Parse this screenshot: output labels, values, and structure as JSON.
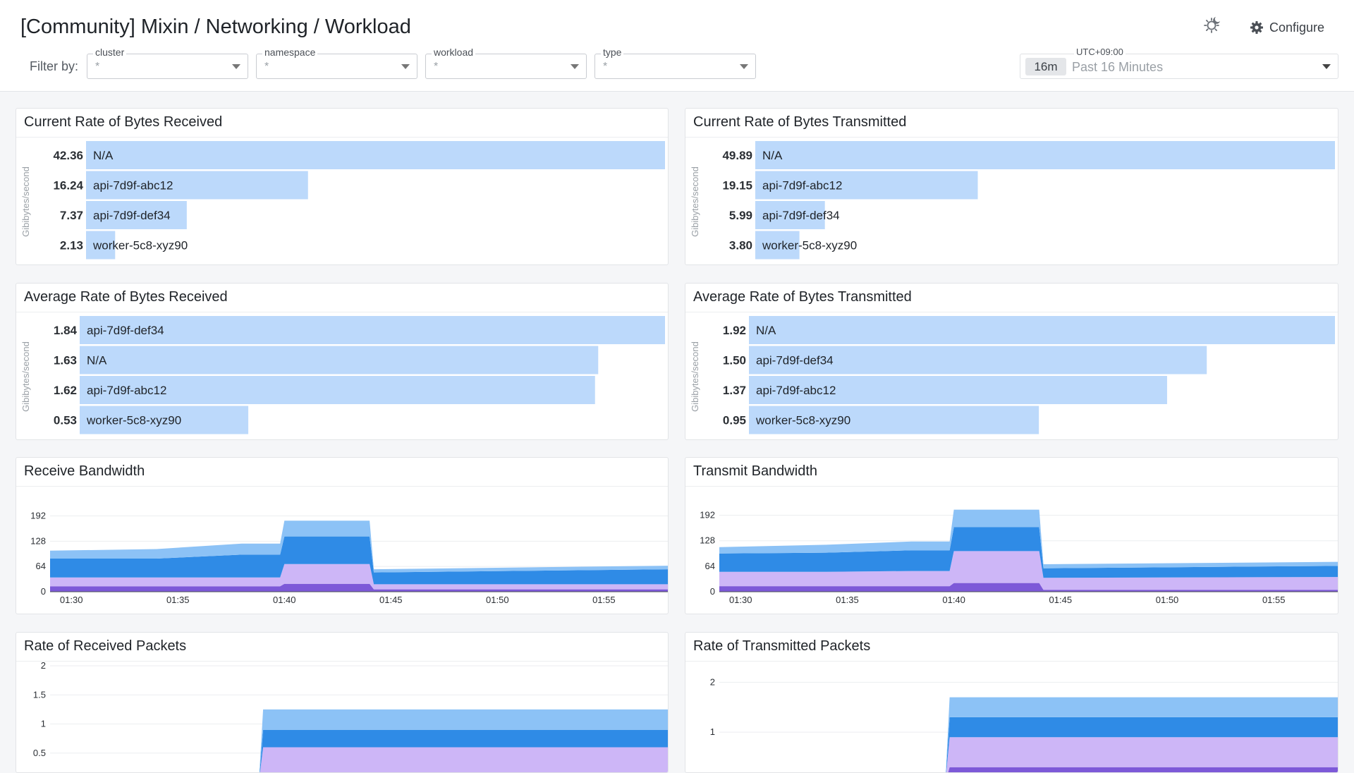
{
  "header": {
    "title": "[Community] Mixin / Networking / Workload",
    "theme_icon": "sun-moon-icon",
    "configure_icon": "gear-icon",
    "configure_label": "Configure"
  },
  "filters": {
    "label": "Filter by:",
    "items": [
      {
        "name": "cluster",
        "value": "*"
      },
      {
        "name": "namespace",
        "value": "*"
      },
      {
        "name": "workload",
        "value": "*"
      },
      {
        "name": "type",
        "value": "*"
      }
    ]
  },
  "time_picker": {
    "timezone": "UTC+09:00",
    "duration": "16m",
    "range": "Past 16 Minutes"
  },
  "colors": {
    "bar": "#bcd9fb",
    "light_blue": "#8cc2f6",
    "mid_blue": "#2f8be6",
    "lavender": "#cdb6f7",
    "purple": "#7d59d8"
  },
  "panels": {
    "current_rx": {
      "title": "Current Rate of Bytes Received"
    },
    "current_tx": {
      "title": "Current Rate of Bytes Transmitted"
    },
    "avg_rx": {
      "title": "Average Rate of Bytes Received"
    },
    "avg_tx": {
      "title": "Average Rate of Bytes Transmitted"
    },
    "rx_bw": {
      "title": "Receive Bandwidth"
    },
    "tx_bw": {
      "title": "Transmit Bandwidth"
    },
    "rx_pkts": {
      "title": "Rate of Received Packets"
    },
    "tx_pkts": {
      "title": "Rate of Transmitted Packets"
    }
  },
  "chart_data": [
    {
      "id": "current_rx",
      "type": "bar",
      "orientation": "horizontal",
      "title": "Current Rate of Bytes Received",
      "ylabel": "Gibibytes/second",
      "categories": [
        "N/A",
        "api-7d9f-abc12",
        "api-7d9f-def34",
        "worker-5c8-xyz90"
      ],
      "values": [
        42.36,
        16.24,
        7.37,
        2.13
      ],
      "value_labels": [
        "42.36",
        "16.24",
        "7.37",
        "2.13"
      ]
    },
    {
      "id": "current_tx",
      "type": "bar",
      "orientation": "horizontal",
      "title": "Current Rate of Bytes Transmitted",
      "ylabel": "Gibibytes/second",
      "categories": [
        "N/A",
        "api-7d9f-abc12",
        "api-7d9f-def34",
        "worker-5c8-xyz90"
      ],
      "values": [
        49.89,
        19.15,
        5.99,
        3.8
      ],
      "value_labels": [
        "49.89",
        "19.15",
        "5.99",
        "3.80"
      ]
    },
    {
      "id": "avg_rx",
      "type": "bar",
      "orientation": "horizontal",
      "title": "Average Rate of Bytes Received",
      "ylabel": "Gibibytes/second",
      "categories": [
        "api-7d9f-def34",
        "N/A",
        "api-7d9f-abc12",
        "worker-5c8-xyz90"
      ],
      "values": [
        1.84,
        1.63,
        1.62,
        0.53
      ],
      "value_labels": [
        "1.84",
        "1.63",
        "1.62",
        "0.53"
      ]
    },
    {
      "id": "avg_tx",
      "type": "bar",
      "orientation": "horizontal",
      "title": "Average Rate of Bytes Transmitted",
      "ylabel": "Gibibytes/second",
      "categories": [
        "N/A",
        "api-7d9f-def34",
        "api-7d9f-abc12",
        "worker-5c8-xyz90"
      ],
      "values": [
        1.92,
        1.5,
        1.37,
        0.95
      ],
      "value_labels": [
        "1.92",
        "1.50",
        "1.37",
        "0.95"
      ]
    },
    {
      "id": "rx_bw",
      "type": "area",
      "stacked": true,
      "title": "Receive Bandwidth",
      "x_tick_labels": [
        "01:30",
        "01:35",
        "01:40",
        "01:45",
        "01:50",
        "01:55"
      ],
      "x_tick_minutes": [
        0,
        5,
        10,
        15,
        20,
        25
      ],
      "x_range_minutes": [
        -1,
        28.2
      ],
      "y_ticks": [
        0,
        64,
        128,
        192
      ],
      "y_tick_labels": [
        "0",
        "64",
        "128",
        "192"
      ],
      "ylim": [
        0,
        200
      ],
      "series_x": [
        -1,
        4,
        8,
        9.8,
        10,
        14,
        14.2,
        28.2
      ],
      "series": [
        {
          "color": "#7d59d8",
          "values": [
            14,
            14,
            14,
            14,
            20,
            20,
            6,
            6
          ]
        },
        {
          "color": "#cdb6f7",
          "values": [
            22,
            22,
            22,
            22,
            50,
            50,
            13,
            13
          ]
        },
        {
          "color": "#2f8be6",
          "values": [
            48,
            48,
            58,
            58,
            70,
            70,
            30,
            38
          ]
        },
        {
          "color": "#8cc2f6",
          "values": [
            20,
            24,
            28,
            28,
            40,
            40,
            8,
            9
          ]
        }
      ]
    },
    {
      "id": "tx_bw",
      "type": "area",
      "stacked": true,
      "title": "Transmit Bandwidth",
      "x_tick_labels": [
        "01:30",
        "01:35",
        "01:40",
        "01:45",
        "01:50",
        "01:55"
      ],
      "x_tick_minutes": [
        0,
        5,
        10,
        15,
        20,
        25
      ],
      "x_range_minutes": [
        -1,
        28.2
      ],
      "y_ticks": [
        0,
        64,
        128,
        192
      ],
      "y_tick_labels": [
        "0",
        "64",
        "128",
        "192"
      ],
      "ylim": [
        0,
        216
      ],
      "series_x": [
        -1,
        4,
        8,
        9.8,
        10,
        14,
        14.2,
        28.2
      ],
      "series": [
        {
          "color": "#7d59d8",
          "values": [
            14,
            14,
            14,
            14,
            22,
            22,
            5,
            5
          ]
        },
        {
          "color": "#cdb6f7",
          "values": [
            36,
            36,
            38,
            38,
            80,
            80,
            30,
            32
          ]
        },
        {
          "color": "#2f8be6",
          "values": [
            46,
            48,
            52,
            52,
            60,
            60,
            24,
            28
          ]
        },
        {
          "color": "#8cc2f6",
          "values": [
            16,
            20,
            22,
            22,
            44,
            44,
            10,
            10
          ]
        }
      ]
    },
    {
      "id": "rx_pkts",
      "type": "area",
      "stacked": true,
      "title": "Rate of Received Packets",
      "x_range_minutes": [
        -1,
        28.2
      ],
      "y_ticks": [
        0.5,
        1,
        1.5,
        2
      ],
      "y_tick_labels": [
        "0.5",
        "1",
        "1.5",
        "2"
      ],
      "ylim": [
        0,
        2
      ],
      "series_x": [
        -1,
        8.8,
        9,
        28.2
      ],
      "series": [
        {
          "color": "#7d59d8",
          "values": [
            0,
            0,
            0.15,
            0.15
          ]
        },
        {
          "color": "#cdb6f7",
          "values": [
            0,
            0,
            0.45,
            0.45
          ]
        },
        {
          "color": "#2f8be6",
          "values": [
            0,
            0,
            0.3,
            0.3
          ]
        },
        {
          "color": "#8cc2f6",
          "values": [
            0,
            0,
            0.35,
            0.35
          ]
        }
      ]
    },
    {
      "id": "tx_pkts",
      "type": "area",
      "stacked": true,
      "title": "Rate of Transmitted Packets",
      "x_range_minutes": [
        -1,
        28.2
      ],
      "y_ticks": [
        1,
        2
      ],
      "y_tick_labels": [
        "1",
        "2"
      ],
      "ylim": [
        0,
        2.4
      ],
      "series_x": [
        -1,
        9.6,
        9.8,
        28.2
      ],
      "series": [
        {
          "color": "#7d59d8",
          "values": [
            0,
            0,
            0.3,
            0.3
          ]
        },
        {
          "color": "#cdb6f7",
          "values": [
            0,
            0,
            0.6,
            0.6
          ]
        },
        {
          "color": "#2f8be6",
          "values": [
            0,
            0,
            0.4,
            0.4
          ]
        },
        {
          "color": "#8cc2f6",
          "values": [
            0,
            0,
            0.4,
            0.4
          ]
        }
      ]
    }
  ]
}
